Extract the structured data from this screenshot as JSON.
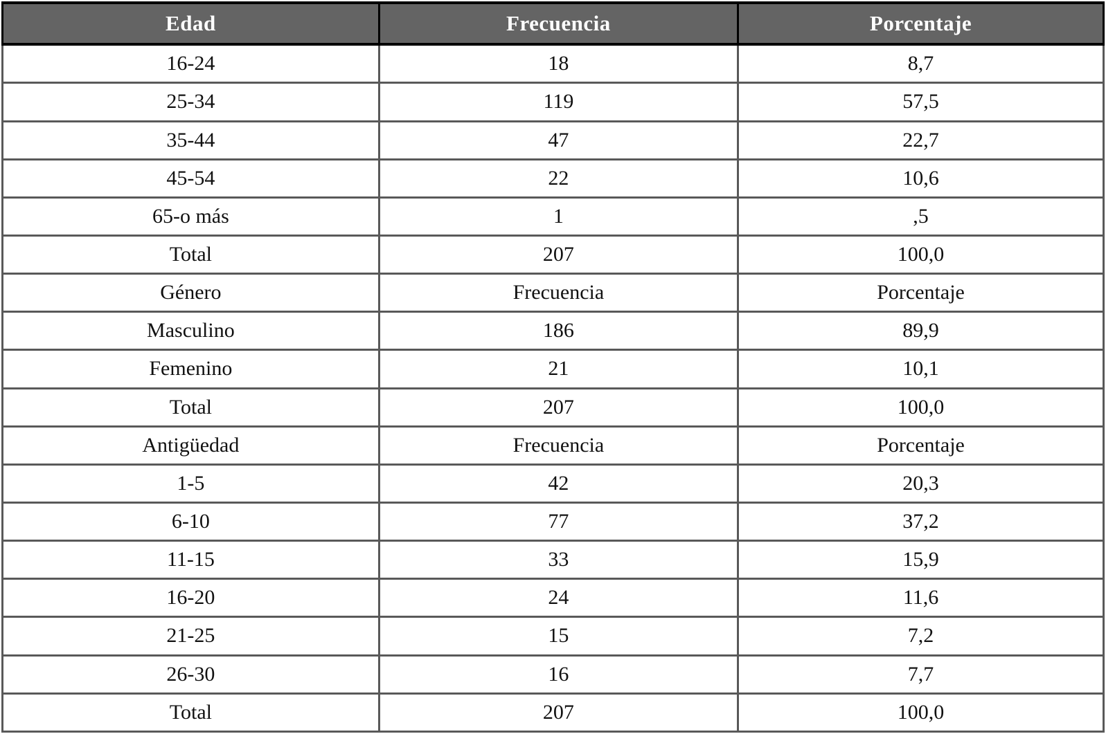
{
  "document": {
    "kind": "statistical-frequency-table",
    "language": "es"
  },
  "colors": {
    "header_bg": "#646464",
    "header_text": "#ffffff",
    "header_border": "#000000",
    "body_border": "#595959",
    "body_text": "#111111",
    "row_bg": "#ffffff",
    "page_bg": "#ffffff"
  },
  "table": {
    "header": {
      "cells": [
        "Edad",
        "Frecuencia",
        "Porcentaje"
      ]
    },
    "rows": [
      {
        "kind": "data",
        "cells": [
          "16-24",
          "18",
          "8,7"
        ]
      },
      {
        "kind": "data",
        "cells": [
          "25-34",
          "119",
          "57,5"
        ]
      },
      {
        "kind": "data",
        "cells": [
          "35-44",
          "47",
          "22,7"
        ]
      },
      {
        "kind": "data",
        "cells": [
          "45-54",
          "22",
          "10,6"
        ]
      },
      {
        "kind": "data",
        "cells": [
          "65-o más",
          "1",
          ",5"
        ]
      },
      {
        "kind": "total",
        "cells": [
          "Total",
          "207",
          "100,0"
        ]
      },
      {
        "kind": "section-header",
        "cells": [
          "Género",
          "Frecuencia",
          "Porcentaje"
        ]
      },
      {
        "kind": "data",
        "cells": [
          "Masculino",
          "186",
          "89,9"
        ]
      },
      {
        "kind": "data",
        "cells": [
          "Femenino",
          "21",
          "10,1"
        ]
      },
      {
        "kind": "total",
        "cells": [
          "Total",
          "207",
          "100,0"
        ]
      },
      {
        "kind": "section-header",
        "cells": [
          "Antigüedad",
          "Frecuencia",
          "Porcentaje"
        ]
      },
      {
        "kind": "data",
        "cells": [
          "1-5",
          "42",
          "20,3"
        ]
      },
      {
        "kind": "data",
        "cells": [
          "6-10",
          "77",
          "37,2"
        ]
      },
      {
        "kind": "data",
        "cells": [
          "11-15",
          "33",
          "15,9"
        ]
      },
      {
        "kind": "data",
        "cells": [
          "16-20",
          "24",
          "11,6"
        ]
      },
      {
        "kind": "data",
        "cells": [
          "21-25",
          "15",
          "7,2"
        ]
      },
      {
        "kind": "data",
        "cells": [
          "26-30",
          "16",
          "7,7"
        ]
      },
      {
        "kind": "total",
        "cells": [
          "Total",
          "207",
          "100,0"
        ]
      }
    ]
  }
}
